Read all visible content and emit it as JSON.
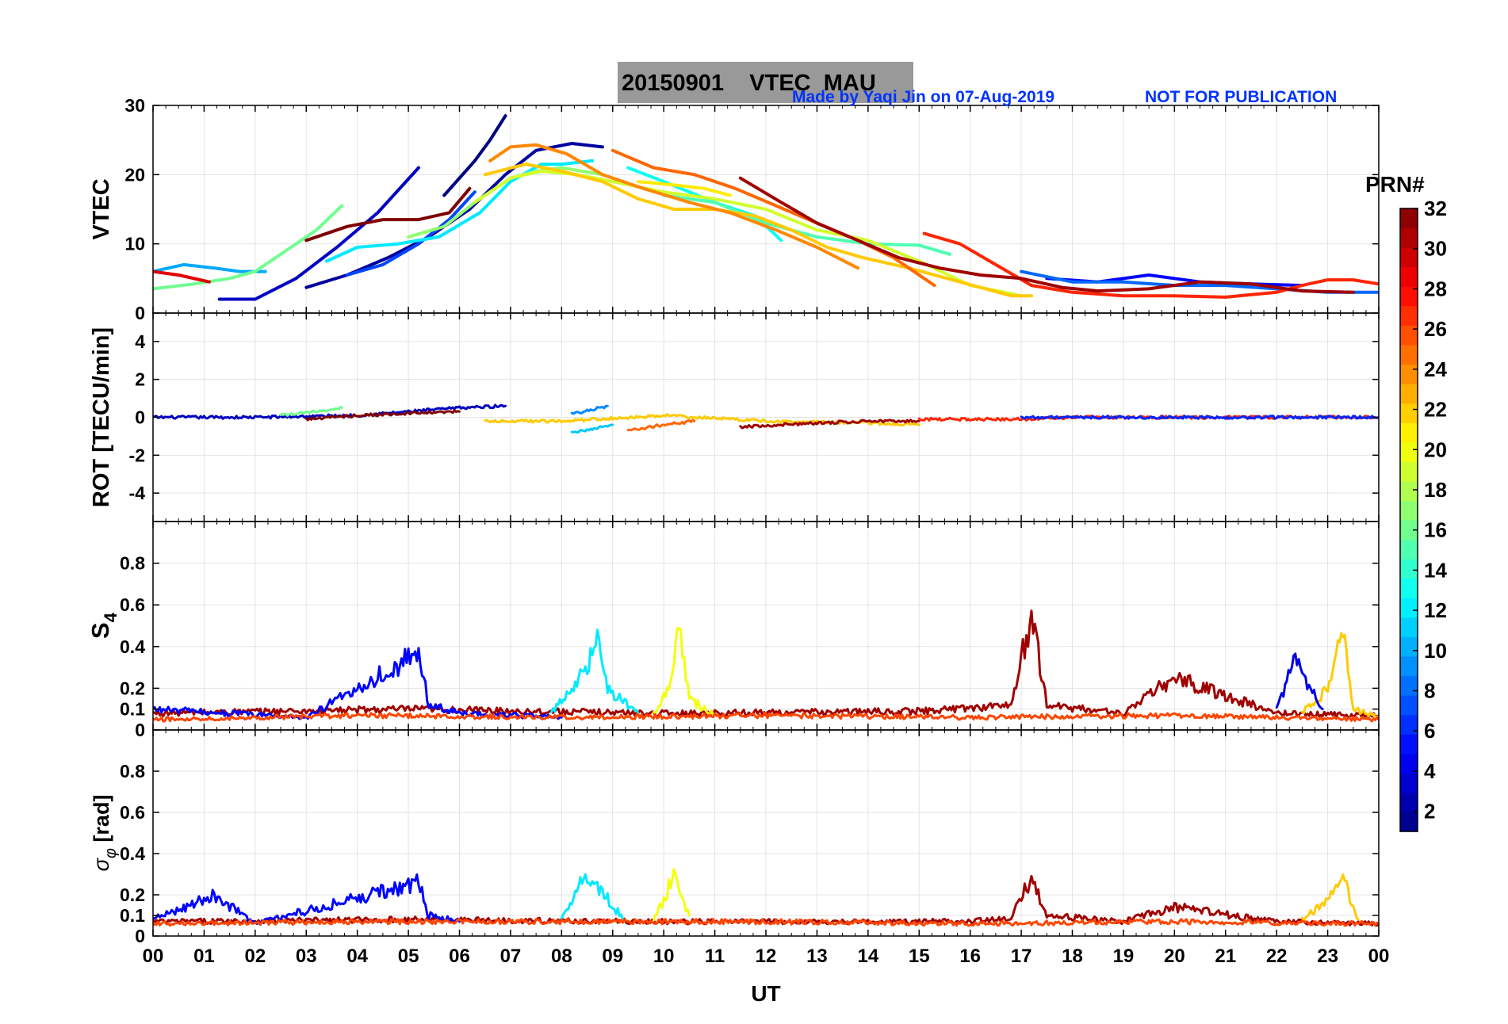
{
  "figure": {
    "title": "20150901    VTEC  MAU",
    "credit": "Made by Yaqi Jin on 07-Aug-2019",
    "notice": "NOT FOR PUBLICATION",
    "xlabel": "UT",
    "colorbar_label": "PRN#"
  },
  "chart_data": [
    {
      "type": "line",
      "panel": "VTEC",
      "ylabel": "VTEC",
      "xlim": [
        0,
        24
      ],
      "ylim": [
        0,
        30
      ],
      "yticks": [
        0,
        10,
        20,
        30
      ],
      "x_tick_labels": [
        "00",
        "01",
        "02",
        "03",
        "04",
        "05",
        "06",
        "07",
        "08",
        "09",
        "10",
        "11",
        "12",
        "13",
        "14",
        "15",
        "16",
        "17",
        "18",
        "19",
        "20",
        "21",
        "22",
        "23",
        "00"
      ],
      "grid": true,
      "color_by": "PRN",
      "series": [
        {
          "prn": 1,
          "x": [
            5.7,
            6.3,
            6.6,
            6.9
          ],
          "y": [
            17,
            22,
            25,
            28.5
          ]
        },
        {
          "prn": 2,
          "x": [
            3.0,
            3.8,
            4.6,
            5.4,
            6.2,
            6.9,
            7.5,
            8.2,
            8.8
          ],
          "y": [
            3.7,
            5.5,
            8,
            11,
            15,
            20,
            23.5,
            24.5,
            24
          ]
        },
        {
          "prn": 3,
          "x": [
            1.3,
            2.0,
            2.8,
            3.6,
            4.4,
            5.2
          ],
          "y": [
            2,
            2,
            5,
            9.5,
            14.5,
            21
          ]
        },
        {
          "prn": 5,
          "x": [
            17.5,
            18.5,
            19.5,
            20.5,
            21.5,
            22.5
          ],
          "y": [
            5,
            4.5,
            5.5,
            4.5,
            4.2,
            4
          ]
        },
        {
          "prn": 7,
          "x": [
            3.8,
            4.5,
            5.2,
            5.8,
            6.3
          ],
          "y": [
            5.5,
            7,
            10,
            13.5,
            17.5
          ]
        },
        {
          "prn": 8,
          "x": [
            17.0,
            18.0,
            19.0,
            20.0,
            21.0,
            22.0,
            23.0,
            24.0
          ],
          "y": [
            6,
            4.5,
            4.5,
            4,
            4,
            3.5,
            3,
            3
          ]
        },
        {
          "prn": 10,
          "x": [
            0.0,
            0.6,
            1.2,
            1.7,
            2.2
          ],
          "y": [
            6,
            7,
            6.5,
            6,
            6
          ]
        },
        {
          "prn": 12,
          "x": [
            3.4,
            4.0,
            4.8,
            5.6,
            6.4,
            7.0,
            7.6,
            8.0,
            8.6
          ],
          "y": [
            7.5,
            9.5,
            10,
            11,
            14.5,
            19,
            21.5,
            21.5,
            22
          ]
        },
        {
          "prn": 13,
          "x": [
            9.3,
            10.0,
            11.0,
            11.8,
            12.3
          ],
          "y": [
            21,
            19,
            16,
            14,
            10.5
          ]
        },
        {
          "prn": 15,
          "x": [
            10.0,
            11.0,
            12.0,
            13.0,
            14.0,
            15.0,
            15.6
          ],
          "y": [
            17,
            16,
            13,
            11,
            10,
            9.8,
            8.5
          ]
        },
        {
          "prn": 16,
          "x": [
            0.0,
            0.8,
            1.5,
            2.0,
            2.6,
            3.2,
            3.7
          ],
          "y": [
            3.5,
            4.2,
            5,
            6,
            9,
            12,
            15.5
          ]
        },
        {
          "prn": 17,
          "x": [
            5.0,
            5.7,
            6.3,
            7.0,
            7.5,
            8.0,
            8.8
          ],
          "y": [
            11,
            12.5,
            16,
            19.5,
            20.5,
            21,
            20
          ]
        },
        {
          "prn": 19,
          "x": [
            6.3,
            7.0,
            7.6,
            8.3,
            9.0,
            10.0,
            11.0,
            12.0,
            13.0,
            14.0,
            15.0,
            16.0,
            17.0
          ],
          "y": [
            16,
            19.5,
            20.5,
            20,
            19,
            17.5,
            16.5,
            15,
            12,
            10.5,
            7.5,
            4,
            2.5
          ]
        },
        {
          "prn": 21,
          "x": [
            9.5,
            10.2,
            10.8,
            11.3
          ],
          "y": [
            19,
            18.5,
            18,
            17
          ]
        },
        {
          "prn": 22,
          "x": [
            6.5,
            7.3,
            8.0,
            8.8,
            9.5,
            10.2,
            11.0,
            11.8,
            12.5,
            13.2,
            13.9,
            14.8,
            15.8,
            16.8,
            17.2
          ],
          "y": [
            20,
            21.5,
            20.5,
            19,
            16.5,
            15,
            15,
            14,
            12,
            9.5,
            8,
            6.5,
            4.5,
            2.5,
            2.5
          ]
        },
        {
          "prn": 24,
          "x": [
            6.6,
            7.0,
            7.5,
            8.1,
            8.8,
            9.6,
            10.5,
            11.3,
            12.2,
            13.0,
            13.8
          ],
          "y": [
            22,
            24,
            24.3,
            23,
            20,
            18,
            16,
            14.5,
            12,
            9.5,
            6.5
          ]
        },
        {
          "prn": 25,
          "x": [
            9.0,
            9.8,
            10.6,
            11.4,
            12.2,
            13.0,
            13.8,
            14.5,
            15.3
          ],
          "y": [
            23.5,
            21,
            20,
            18,
            15.5,
            13,
            10.5,
            8,
            4
          ]
        },
        {
          "prn": 27,
          "x": [
            15.1,
            15.8,
            16.5,
            17.2,
            18.0,
            19.0,
            20.0,
            21.0,
            22.0,
            22.5,
            23.0,
            23.5,
            24.0
          ],
          "y": [
            11.5,
            10,
            7,
            4,
            3,
            2.5,
            2.5,
            2.3,
            3,
            4,
            4.8,
            4.8,
            4.2
          ]
        },
        {
          "prn": 29,
          "x": [
            0.0,
            0.5,
            1.1
          ],
          "y": [
            6,
            5.5,
            4.5
          ]
        },
        {
          "prn": 31,
          "x": [
            11.5,
            12.3,
            13.0,
            13.8,
            14.6,
            15.4,
            16.2,
            17.0,
            17.8,
            18.5,
            19.5,
            20.5,
            21.5,
            22.5,
            23.5
          ],
          "y": [
            19.5,
            16,
            13,
            10.5,
            8,
            6.5,
            5.5,
            5,
            3.7,
            3.2,
            3.5,
            4.5,
            4.2,
            3.2,
            3
          ]
        },
        {
          "prn": 32,
          "x": [
            3.0,
            3.8,
            4.5,
            5.2,
            5.8,
            6.2
          ],
          "y": [
            10.5,
            12.5,
            13.5,
            13.5,
            14.5,
            18
          ]
        }
      ]
    },
    {
      "type": "line",
      "panel": "ROT",
      "ylabel": "ROT [TECU/min]",
      "xlim": [
        0,
        24
      ],
      "ylim": [
        -5.5,
        5.5
      ],
      "yticks": [
        -4,
        -2,
        0,
        2,
        4
      ],
      "grid": true,
      "note": "ROT traces scattered around 0 TECU/min with excursions of roughly ±1 TECU/min",
      "series": [
        {
          "prn": 3,
          "x": [
            0,
            2,
            4,
            5,
            6,
            6.9
          ],
          "y": [
            0,
            0,
            0.1,
            0.3,
            0.5,
            0.6
          ]
        },
        {
          "prn": 16,
          "x": [
            2.5,
            3.2,
            3.7
          ],
          "y": [
            0.1,
            0.3,
            0.5
          ]
        },
        {
          "prn": 32,
          "x": [
            3,
            4,
            5,
            6
          ],
          "y": [
            -0.1,
            0.1,
            0.2,
            0.3
          ]
        },
        {
          "prn": 9,
          "x": [
            8.2,
            8.6,
            8.9
          ],
          "y": [
            0.2,
            0.4,
            0.6
          ]
        },
        {
          "prn": 11,
          "x": [
            8.2,
            8.6,
            9.0
          ],
          "y": [
            -0.8,
            -0.6,
            -0.4
          ]
        },
        {
          "prn": 25,
          "x": [
            9.3,
            10.0,
            10.6
          ],
          "y": [
            -0.7,
            -0.4,
            -0.2
          ]
        },
        {
          "prn": 22,
          "x": [
            6.5,
            8,
            10,
            12,
            14,
            15
          ],
          "y": [
            -0.2,
            -0.2,
            0.1,
            -0.2,
            -0.3,
            -0.4
          ]
        },
        {
          "prn": 31,
          "x": [
            11.5,
            12.3,
            13,
            14,
            15
          ],
          "y": [
            -0.5,
            -0.4,
            -0.3,
            -0.2,
            -0.2
          ]
        },
        {
          "prn": 27,
          "x": [
            15,
            16,
            17,
            18,
            20,
            22,
            24
          ],
          "y": [
            -0.1,
            -0.1,
            -0.1,
            0,
            0,
            0,
            0
          ]
        },
        {
          "prn": 6,
          "x": [
            17,
            18,
            19,
            20,
            21,
            22,
            23,
            24
          ],
          "y": [
            0,
            0,
            0,
            0,
            0,
            0,
            0,
            0
          ]
        }
      ]
    },
    {
      "type": "line",
      "panel": "S4",
      "ylabel": "S4",
      "xlim": [
        0,
        24
      ],
      "ylim": [
        0,
        1
      ],
      "yticks": [
        0,
        0.1,
        0.2,
        0.4,
        0.6,
        0.8
      ],
      "grid": true,
      "note": "S4 background ~0.05-0.1 with peaks up to ~0.55",
      "series": [
        {
          "prn": 31,
          "x": [
            0,
            5,
            10,
            15,
            16.8,
            17.2,
            17.5,
            19,
            20,
            22,
            24
          ],
          "y": [
            0.08,
            0.1,
            0.08,
            0.09,
            0.12,
            0.55,
            0.12,
            0.08,
            0.25,
            0.08,
            0.07
          ]
        },
        {
          "prn": 5,
          "x": [
            0,
            3,
            5.2,
            5.4,
            6,
            8
          ],
          "y": [
            0.1,
            0.06,
            0.37,
            0.12,
            0.08,
            0.06
          ]
        },
        {
          "prn": 12,
          "x": [
            7.8,
            8.5,
            8.7,
            8.9,
            9.5
          ],
          "y": [
            0.08,
            0.3,
            0.49,
            0.2,
            0.08
          ]
        },
        {
          "prn": 20,
          "x": [
            9.8,
            10.1,
            10.3,
            10.5,
            11
          ],
          "y": [
            0.08,
            0.2,
            0.54,
            0.15,
            0.07
          ]
        },
        {
          "prn": 22,
          "x": [
            22.5,
            23.0,
            23.3,
            23.5,
            24
          ],
          "y": [
            0.08,
            0.2,
            0.48,
            0.1,
            0.06
          ]
        },
        {
          "prn": 26,
          "x": [
            0,
            4,
            8,
            12,
            16,
            20,
            24
          ],
          "y": [
            0.05,
            0.07,
            0.06,
            0.07,
            0.06,
            0.07,
            0.05
          ]
        },
        {
          "prn": 4,
          "x": [
            22.0,
            22.4,
            22.6,
            22.9
          ],
          "y": [
            0.1,
            0.35,
            0.22,
            0.1
          ]
        }
      ]
    },
    {
      "type": "line",
      "panel": "sigma_phi",
      "ylabel": "σ_φ [rad]",
      "xlim": [
        0,
        24
      ],
      "ylim": [
        0,
        1
      ],
      "yticks": [
        0,
        0.1,
        0.2,
        0.4,
        0.6,
        0.8
      ],
      "grid": true,
      "note": "phase scintillation index mostly ~0.07 with peaks up to ~0.29",
      "series": [
        {
          "prn": 31,
          "x": [
            0,
            5,
            10,
            15,
            16.8,
            17.2,
            17.5,
            19,
            20,
            22,
            24
          ],
          "y": [
            0.07,
            0.08,
            0.07,
            0.07,
            0.08,
            0.29,
            0.1,
            0.07,
            0.14,
            0.07,
            0.06
          ]
        },
        {
          "prn": 5,
          "x": [
            0,
            1.2,
            2,
            5.2,
            5.4,
            6
          ],
          "y": [
            0.08,
            0.2,
            0.06,
            0.26,
            0.1,
            0.07
          ]
        },
        {
          "prn": 12,
          "x": [
            8.0,
            8.4,
            8.8,
            9.2
          ],
          "y": [
            0.08,
            0.29,
            0.22,
            0.08
          ]
        },
        {
          "prn": 20,
          "x": [
            9.8,
            10.2,
            10.5
          ],
          "y": [
            0.07,
            0.29,
            0.1
          ]
        },
        {
          "prn": 22,
          "x": [
            22.5,
            23.0,
            23.3,
            23.6
          ],
          "y": [
            0.08,
            0.18,
            0.28,
            0.08
          ]
        },
        {
          "prn": 26,
          "x": [
            0,
            4,
            8,
            12,
            16,
            20,
            24
          ],
          "y": [
            0.06,
            0.07,
            0.07,
            0.07,
            0.06,
            0.07,
            0.06
          ]
        }
      ]
    }
  ],
  "colorbar": {
    "ticks": [
      2,
      4,
      6,
      8,
      10,
      12,
      14,
      16,
      18,
      20,
      22,
      24,
      26,
      28,
      30,
      32
    ],
    "range": [
      1,
      32
    ],
    "colormap": "jet"
  }
}
